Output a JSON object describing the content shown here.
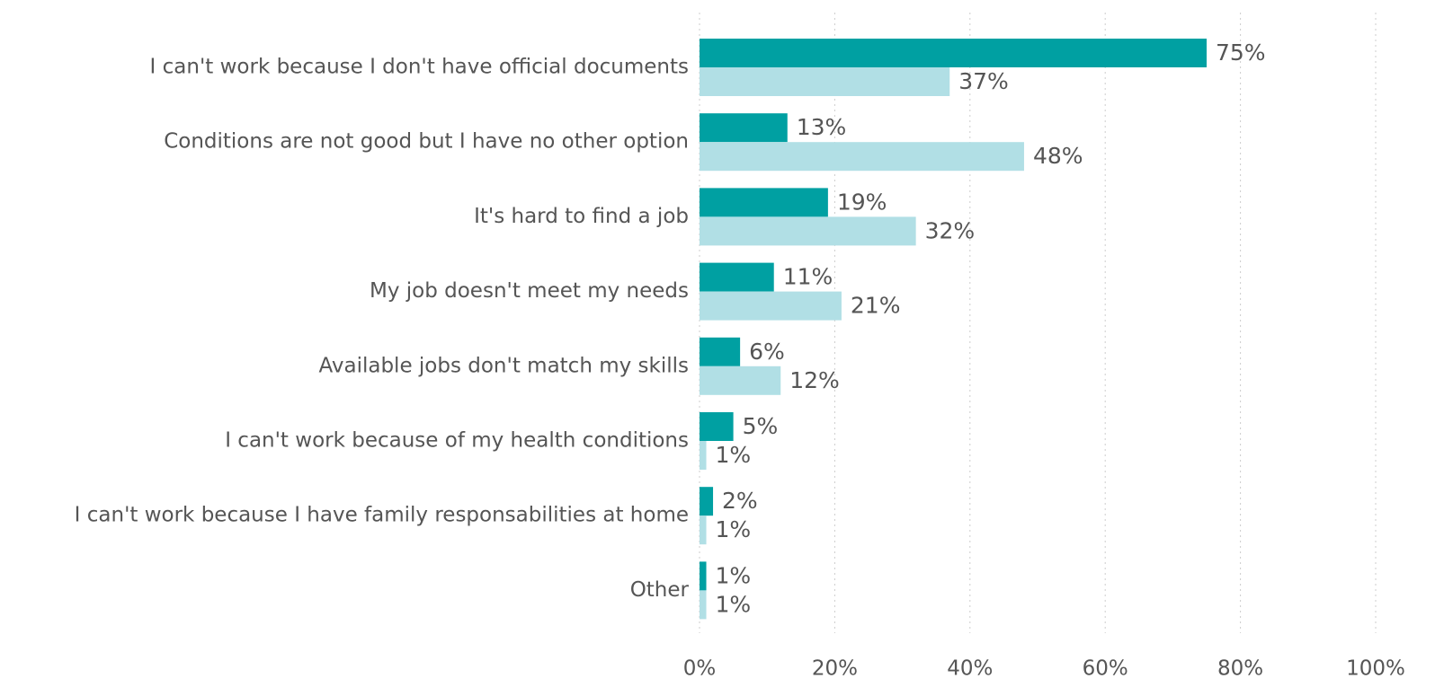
{
  "chart_data": {
    "type": "bar",
    "orientation": "horizontal",
    "categories": [
      "I can't work because I don't have official documents",
      "Conditions are not good but I have no other option",
      "It's hard to find a job",
      "My job doesn't meet my needs",
      "Available jobs don't match my skills",
      "I can't work because of my health conditions",
      "I can't work because I have family responsabilities at home",
      "Other"
    ],
    "series": [
      {
        "color": "#00a0a2",
        "values": [
          75,
          13,
          19,
          11,
          6,
          5,
          2,
          1
        ],
        "value_labels": [
          "75%",
          "13%",
          "19%",
          "11%",
          "6%",
          "5%",
          "2%",
          "1%"
        ]
      },
      {
        "color": "#b1dfe5",
        "values": [
          37,
          48,
          32,
          21,
          12,
          1,
          1,
          1
        ],
        "value_labels": [
          "37%",
          "48%",
          "32%",
          "21%",
          "12%",
          "1%",
          "1%",
          "1%"
        ]
      }
    ],
    "xlim": [
      0,
      100
    ],
    "xticks": [
      {
        "value": 0,
        "label": "0%"
      },
      {
        "value": 20,
        "label": "20%"
      },
      {
        "value": 40,
        "label": "40%"
      },
      {
        "value": 60,
        "label": "60%"
      },
      {
        "value": 80,
        "label": "80%"
      },
      {
        "value": 100,
        "label": "100%"
      }
    ],
    "grid": true
  }
}
